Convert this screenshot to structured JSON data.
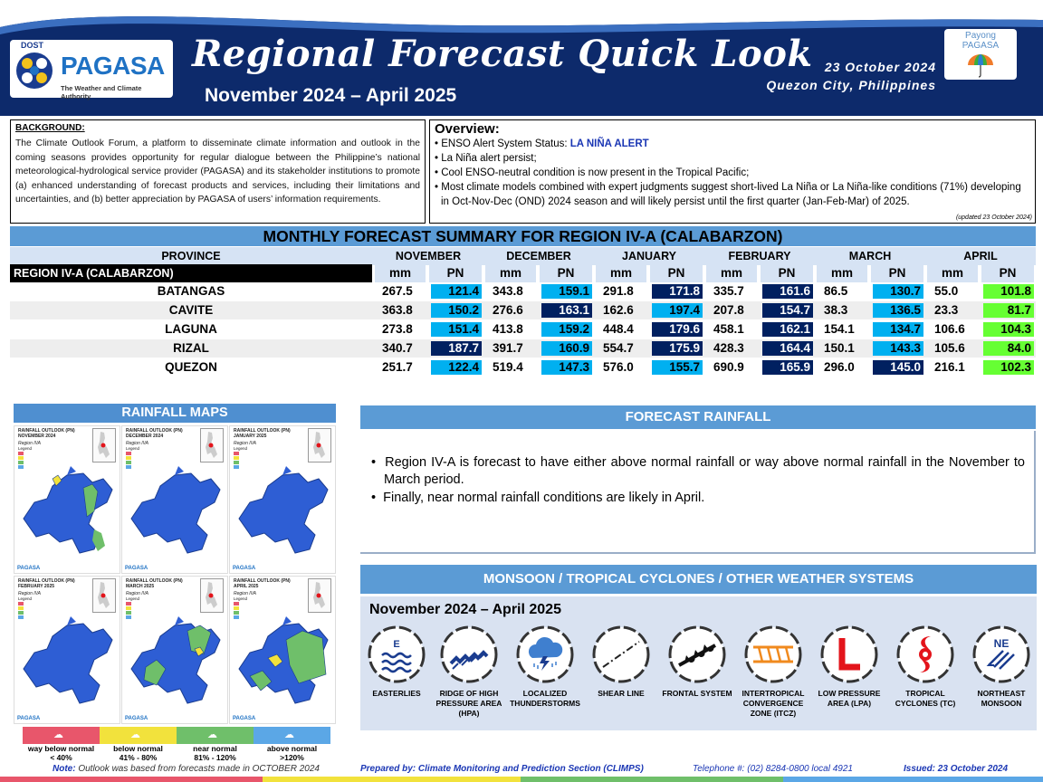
{
  "header": {
    "logo_dost": "DOST",
    "logo_name": "PAGASA",
    "logo_tagline": "The Weather and Climate Authority",
    "title": "Regional Forecast Quick Look",
    "period": "November 2024 – April 2025",
    "issue_date": "23 October 2024",
    "issue_place": "Quezon City, Philippines",
    "payong_line1": "Payong",
    "payong_line2": "PAGASA"
  },
  "background": {
    "title": "BACKGROUND:",
    "text": "The Climate Outlook Forum, a platform to disseminate climate information and outlook in the coming seasons provides opportunity for regular dialogue between the Philippine’s national meteorological-hydrological service provider (PAGASA) and its stakeholder institutions to promote (a) enhanced understanding of forecast products and services, including their limitations and uncertainties, and (b) better appreciation by PAGASA of users’ information requirements."
  },
  "overview": {
    "title": "Overview:",
    "enso_label": "ENSO Alert System Status: ",
    "enso_status": "LA NIÑA ALERT",
    "items": [
      "La Niña alert persist;",
      "Cool ENSO-neutral condition is now present in the Tropical Pacific;",
      "Most climate models combined with expert judgments suggest short-lived La Niña or La Niña-like conditions (71%) developing in Oct-Nov-Dec (OND) 2024 season and will likely persist until the first quarter (Jan-Feb-Mar) of 2025."
    ],
    "updated": "(updated 23 October 2024)"
  },
  "table": {
    "title": "MONTHLY FORECAST SUMMARY FOR REGION IV-A  (CALABARZON)",
    "province_header": "PROVINCE",
    "region_label": "REGION IV-A  (CALABARZON)",
    "months": [
      "NOVEMBER",
      "DECEMBER",
      "JANUARY",
      "FEBRUARY",
      "MARCH",
      "APRIL"
    ],
    "mm_label": "mm",
    "pn_label": "PN",
    "rows": [
      {
        "province": "BATANGAS",
        "values": [
          [
            "267.5",
            "121.4"
          ],
          [
            "343.8",
            "159.1"
          ],
          [
            "291.8",
            "171.8"
          ],
          [
            "335.7",
            "161.6"
          ],
          [
            "86.5",
            "130.7"
          ],
          [
            "55.0",
            "101.8"
          ]
        ]
      },
      {
        "province": "CAVITE",
        "values": [
          [
            "363.8",
            "150.2"
          ],
          [
            "276.6",
            "163.1"
          ],
          [
            "162.6",
            "197.4"
          ],
          [
            "207.8",
            "154.7"
          ],
          [
            "38.3",
            "136.5"
          ],
          [
            "23.3",
            "81.7"
          ]
        ]
      },
      {
        "province": "LAGUNA",
        "values": [
          [
            "273.8",
            "151.4"
          ],
          [
            "413.8",
            "159.2"
          ],
          [
            "448.4",
            "179.6"
          ],
          [
            "458.1",
            "162.1"
          ],
          [
            "154.1",
            "134.7"
          ],
          [
            "106.6",
            "104.3"
          ]
        ]
      },
      {
        "province": "RIZAL",
        "values": [
          [
            "340.7",
            "187.7"
          ],
          [
            "391.7",
            "160.9"
          ],
          [
            "554.7",
            "175.9"
          ],
          [
            "428.3",
            "164.4"
          ],
          [
            "150.1",
            "143.3"
          ],
          [
            "105.6",
            "84.0"
          ]
        ]
      },
      {
        "province": "QUEZON",
        "values": [
          [
            "251.7",
            "122.4"
          ],
          [
            "519.4",
            "147.3"
          ],
          [
            "576.0",
            "155.7"
          ],
          [
            "690.9",
            "165.9"
          ],
          [
            "296.0",
            "145.0"
          ],
          [
            "216.1",
            "102.3"
          ]
        ]
      }
    ],
    "pn_colors": [
      [
        "lb",
        "lb",
        "db",
        "db",
        "lb",
        "gr"
      ],
      [
        "lb",
        "db",
        "lb",
        "db",
        "lb",
        "gr"
      ],
      [
        "lb",
        "lb",
        "db",
        "db",
        "lb",
        "gr"
      ],
      [
        "db",
        "lb",
        "db",
        "db",
        "lb",
        "gr"
      ],
      [
        "lb",
        "lb",
        "lb",
        "db",
        "db",
        "gr"
      ]
    ],
    "colors": {
      "light_blue": "#00b0f0",
      "dark_blue": "#002060",
      "green": "#66ff33"
    }
  },
  "maps": {
    "title": "RAINFALL MAPS",
    "panels": [
      {
        "label": "RAINFALL OUTLOOK (PN)\nNOVEMBER 2024",
        "region": "Region IVA"
      },
      {
        "label": "RAINFALL OUTLOOK (PN)\nDECEMBER 2024",
        "region": "Region IVA"
      },
      {
        "label": "RAINFALL OUTLOOK (PN)\nJANUARY 2025",
        "region": "Region IVA"
      },
      {
        "label": "RAINFALL OUTLOOK (PN)\nFEBRUARY 2025",
        "region": "Region IVA"
      },
      {
        "label": "RAINFALL OUTLOOK (PN)\nMARCH 2025",
        "region": "Region IVA"
      },
      {
        "label": "RAINFALL OUTLOOK (PN)\nAPRIL 2025",
        "region": "Region IVA"
      }
    ],
    "legend_title": "Legend",
    "legend": [
      {
        "line1": "way below normal",
        "line2": "< 40%",
        "color": "#e8566b"
      },
      {
        "line1": "below normal",
        "line2": "41% - 80%",
        "color": "#f2e23c"
      },
      {
        "line1": "near normal",
        "line2": "81% - 120%",
        "color": "#6fbf6a"
      },
      {
        "line1": "above normal",
        "line2": ">120%",
        "color": "#5ba7e6"
      }
    ]
  },
  "forecast_rainfall": {
    "title": "FORECAST RAINFALL",
    "bullets": [
      "Region IV-A is forecast to have either above normal rainfall or way above normal rainfall in the November to March period.",
      "Finally, near normal rainfall conditions are likely in April."
    ]
  },
  "monsoon": {
    "title": "MONSOON / TROPICAL CYCLONES / OTHER WEATHER SYSTEMS",
    "period": "November 2024 – April 2025",
    "systems": [
      {
        "label": "EASTERLIES",
        "icon": "easterlies-icon"
      },
      {
        "label": "RIDGE OF HIGH PRESSURE AREA (HPA)",
        "icon": "ridge-icon"
      },
      {
        "label": "LOCALIZED THUNDERSTORMS",
        "icon": "thunderstorm-icon"
      },
      {
        "label": "SHEAR LINE",
        "icon": "shear-line-icon"
      },
      {
        "label": "FRONTAL SYSTEM",
        "icon": "frontal-system-icon"
      },
      {
        "label": "INTERTROPICAL CONVERGENCE ZONE (ITCZ)",
        "icon": "itcz-icon"
      },
      {
        "label": "LOW PRESSURE AREA (LPA)",
        "icon": "lpa-icon"
      },
      {
        "label": "TROPICAL CYCLONES (TC)",
        "icon": "tropical-cyclone-icon"
      },
      {
        "label": "NORTHEAST MONSOON",
        "icon": "northeast-monsoon-icon"
      }
    ],
    "easterlies_letter": "E",
    "ne_letters": "NE"
  },
  "footer": {
    "note_key": "Note:",
    "note_text": "Outlook was based from forecasts made in OCTOBER 2024",
    "prepared": "Prepared by: Climate Monitoring and Prediction Section (CLIMPS)",
    "telephone": "Telephone #: (02) 8284-0800 local 4921",
    "issued": "Issued: 23 October 2024"
  }
}
